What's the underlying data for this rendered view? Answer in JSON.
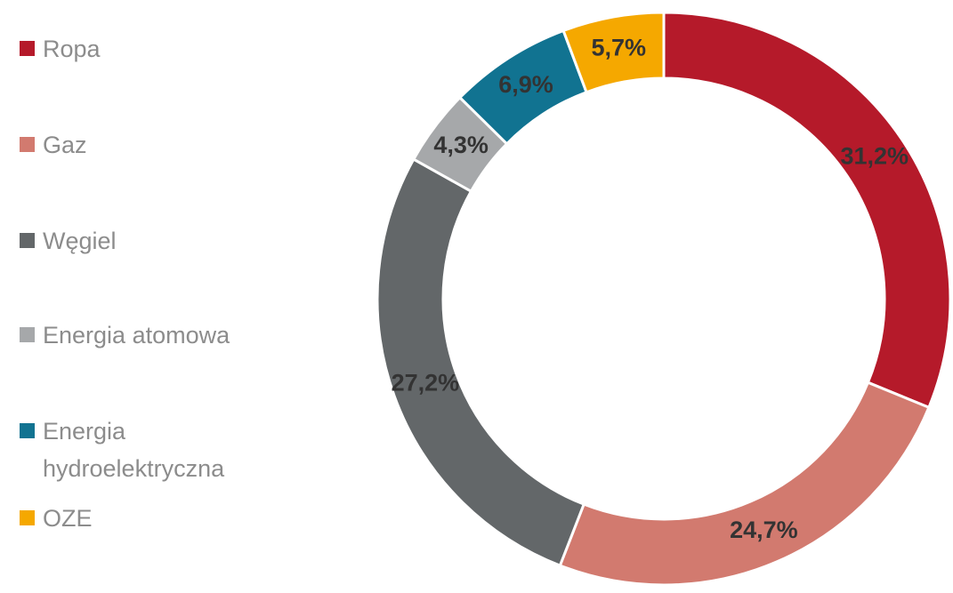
{
  "chart_data": {
    "type": "donut",
    "categories": [
      "Ropa",
      "Gaz",
      "Węgiel",
      "Energia atomowa",
      "Energia hydroelektryczna",
      "OZE"
    ],
    "values": [
      31.2,
      24.7,
      27.2,
      4.3,
      6.9,
      5.7
    ],
    "value_labels": [
      "31,2%",
      "24,7%",
      "27,2%",
      "4,3%",
      "6,9%",
      "5,7%"
    ],
    "colors": [
      "#b51a2a",
      "#d27a6f",
      "#636769",
      "#a6a8aa",
      "#117391",
      "#f5a800"
    ],
    "legend": "left"
  }
}
